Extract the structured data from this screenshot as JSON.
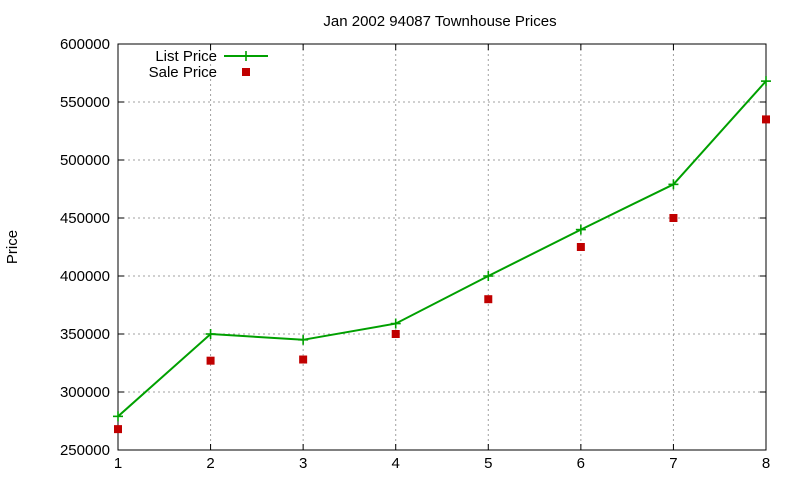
{
  "chart_data": {
    "type": "line",
    "title": "Jan 2002 94087 Townhouse Prices",
    "xlabel": "",
    "ylabel": "Price",
    "x": [
      1,
      2,
      3,
      4,
      5,
      6,
      7,
      8
    ],
    "xlim": [
      1,
      8
    ],
    "ylim": [
      250000,
      600000
    ],
    "xticks": [
      "1",
      "2",
      "3",
      "4",
      "5",
      "6",
      "7",
      "8"
    ],
    "yticks": [
      "250000",
      "300000",
      "350000",
      "400000",
      "450000",
      "500000",
      "550000",
      "600000"
    ],
    "grid": true,
    "legend_position": "top-left",
    "series": [
      {
        "name": "List Price",
        "style": "linespoints",
        "marker": "plus",
        "color": "#00a000",
        "values": [
          279000,
          350000,
          345000,
          359000,
          400000,
          440000,
          479000,
          568000
        ]
      },
      {
        "name": "Sale Price",
        "style": "points",
        "marker": "square",
        "color": "#c00000",
        "values": [
          268000,
          327000,
          328000,
          350000,
          380000,
          425000,
          450000,
          535000
        ]
      }
    ]
  }
}
